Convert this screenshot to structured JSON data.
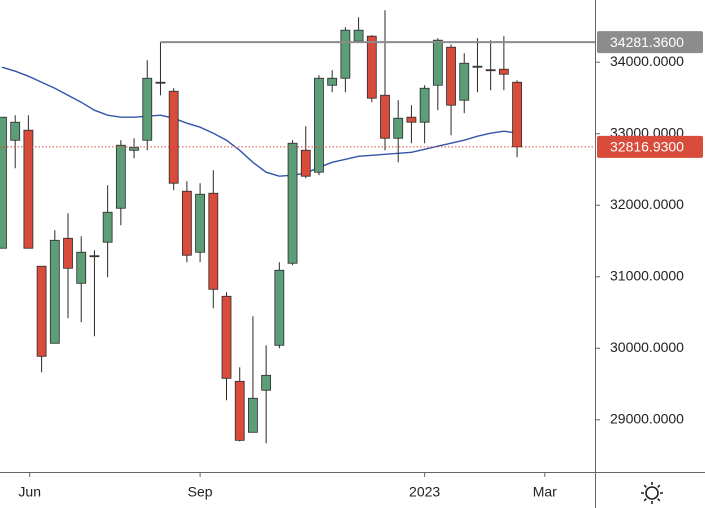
{
  "chart_data": {
    "type": "candlestick",
    "x": [
      0,
      1,
      2,
      3,
      4,
      5,
      6,
      7,
      8,
      9,
      10,
      11,
      12,
      13,
      14,
      15,
      16,
      17,
      18,
      19,
      20,
      21,
      22,
      23,
      24,
      25,
      26,
      27,
      28,
      29,
      30,
      31,
      32,
      33,
      34,
      35,
      36,
      37,
      38,
      39
    ],
    "open": [
      31399,
      32909,
      33049,
      31147,
      30070,
      31538,
      30909,
      31294,
      31483,
      31958,
      32769,
      32909,
      33720,
      33594,
      32196,
      31343,
      32168,
      30727,
      29538,
      28825,
      29413,
      30042,
      31189,
      32769,
      32462,
      33678,
      33776,
      34294,
      34364,
      33538,
      32937,
      33231,
      33161,
      33678,
      34210,
      33469,
      33930,
      33895,
      33902,
      33720
    ],
    "high": [
      33231,
      33259,
      33259,
      31147,
      31650,
      31888,
      31566,
      31371,
      32280,
      32909,
      32937,
      34028,
      34281,
      33636,
      32336,
      32308,
      32490,
      30783,
      29734,
      30448,
      30042,
      31203,
      32909,
      33105,
      33818,
      33888,
      34490,
      34629,
      34378,
      34727,
      33469,
      33399,
      33678,
      34336,
      34252,
      34126,
      34336,
      34308,
      34364,
      33748
    ],
    "low": [
      31399,
      32517,
      31399,
      29664,
      30070,
      30420,
      30364,
      30168,
      30993,
      31720,
      32657,
      32769,
      33538,
      32210,
      31203,
      31203,
      30559,
      29273,
      28699,
      28825,
      28671,
      30000,
      31161,
      32378,
      32420,
      33580,
      33580,
      34280,
      33441,
      32769,
      32601,
      32867,
      32867,
      33329,
      32979,
      33287,
      33580,
      33608,
      33608,
      32671
    ],
    "close": [
      33231,
      33161,
      31399,
      29888,
      31510,
      31119,
      31343,
      31287,
      31902,
      32839,
      32811,
      33776,
      33706,
      32308,
      31301,
      32154,
      30825,
      29580,
      28713,
      29301,
      29622,
      31091,
      32867,
      32406,
      33776,
      33776,
      34448,
      34448,
      33497,
      32937,
      33217,
      33161,
      33636,
      34308,
      33399,
      33986,
      33944,
      33881,
      33832,
      32816.93
    ],
    "colors": {
      "up": "#5b9e77",
      "down": "#d94b3b",
      "wick": "#2a2a2a"
    },
    "moving_average": {
      "color": "#3355aa",
      "values": [
        33930,
        33874,
        33804,
        33720,
        33636,
        33538,
        33441,
        33329,
        33259,
        33231,
        33231,
        33245,
        33259,
        33217,
        33147,
        33091,
        33007,
        32909,
        32769,
        32601,
        32462,
        32406,
        32420,
        32448,
        32531,
        32601,
        32643,
        32685,
        32699,
        32713,
        32727,
        32741,
        32783,
        32825,
        32867,
        32909,
        32965,
        33007,
        33035,
        33007
      ]
    },
    "price_lines": [
      {
        "value": 34281.36,
        "label": "34281.3600",
        "color": "#8c8c8c",
        "from_x": 12,
        "style": "solid"
      },
      {
        "value": 32816.93,
        "label": "32816.9300",
        "color": "#d94b3b",
        "from_x": -0.15,
        "style": "dotted"
      }
    ],
    "xlim": [
      -0.15,
      44.9
    ],
    "xticks": [
      {
        "value": 2.1,
        "label": "Jun"
      },
      {
        "value": 15,
        "label": "Sep"
      },
      {
        "value": 32,
        "label": "2023"
      },
      {
        "value": 41.1,
        "label": "Mar"
      }
    ],
    "ylim": [
      28270,
      34870
    ],
    "yticks": [
      {
        "value": 29000,
        "label": "29000.0000"
      },
      {
        "value": 30000,
        "label": "30000.0000"
      },
      {
        "value": 31000,
        "label": "31000.0000"
      },
      {
        "value": 32000,
        "label": "32000.0000"
      },
      {
        "value": 33000,
        "label": "33000.0000"
      },
      {
        "value": 34000,
        "label": "34000.0000"
      }
    ]
  }
}
